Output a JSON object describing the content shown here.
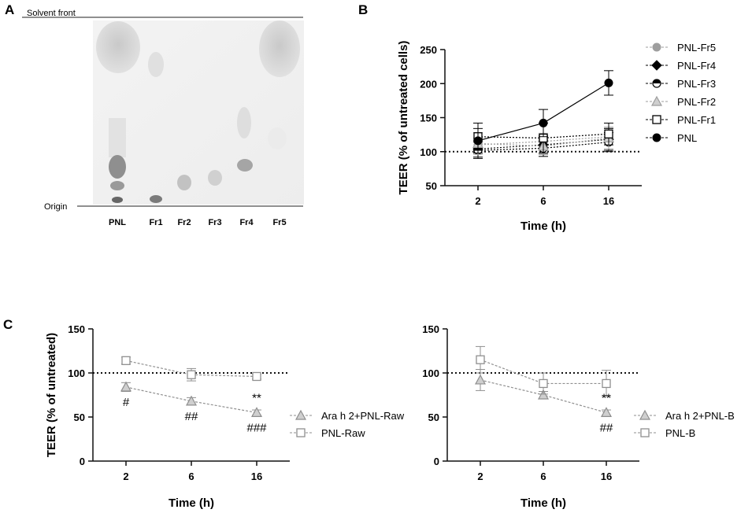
{
  "panels": {
    "a": "A",
    "b": "B",
    "c": "C"
  },
  "tlc": {
    "solvent_front": "Solvent front",
    "origin": "Origin",
    "lanes": [
      "PNL",
      "Fr1",
      "Fr2",
      "Fr3",
      "Fr4",
      "Fr5"
    ]
  },
  "chart_data": [
    {
      "id": "B",
      "type": "line",
      "title": "",
      "xlabel": "Time (h)",
      "ylabel": "TEER (% of untreated cells)",
      "categories": [
        "2",
        "6",
        "16"
      ],
      "ylim": [
        50,
        250
      ],
      "yticks": [
        "50",
        "100",
        "150",
        "200",
        "250"
      ],
      "reference_line": 100,
      "series": [
        {
          "name": "PNL-Fr5",
          "marker": "circle",
          "color": "#9e9e9e",
          "values": [
            110,
            115,
            122
          ],
          "err": [
            10,
            12,
            12
          ]
        },
        {
          "name": "PNL-Fr4",
          "marker": "diamond",
          "color": "#000000",
          "values": [
            104,
            110,
            118
          ],
          "err": [
            12,
            14,
            16
          ]
        },
        {
          "name": "PNL-Fr3",
          "marker": "half-circle",
          "color": "#000000",
          "values": [
            102,
            105,
            114
          ],
          "err": [
            12,
            12,
            14
          ]
        },
        {
          "name": "PNL-Fr2",
          "marker": "triangle",
          "color": "#9e9e9e",
          "values": [
            112,
            108,
            120
          ],
          "err": [
            16,
            12,
            16
          ]
        },
        {
          "name": "PNL-Fr1",
          "marker": "square",
          "color": "#000000",
          "values": [
            122,
            120,
            126
          ],
          "err": [
            20,
            22,
            16
          ]
        },
        {
          "name": "PNL",
          "marker": "circle",
          "color": "#000000",
          "values": [
            116,
            142,
            201
          ],
          "err": [
            18,
            20,
            18
          ]
        }
      ]
    },
    {
      "id": "C-left",
      "type": "line",
      "xlabel": "Time (h)",
      "ylabel": "TEER (% of untreated)",
      "categories": [
        "2",
        "6",
        "16"
      ],
      "ylim": [
        0,
        150
      ],
      "yticks": [
        "0",
        "50",
        "100",
        "150"
      ],
      "reference_line": 100,
      "series": [
        {
          "name": "Ara h 2+PNL-Raw",
          "marker": "triangle",
          "color": "#8f8f8f",
          "values": [
            84,
            68,
            55
          ],
          "err": [
            5,
            4,
            3
          ]
        },
        {
          "name": "PNL-Raw",
          "marker": "square",
          "color": "#8f8f8f",
          "values": [
            114,
            98,
            96
          ],
          "err": [
            4,
            7,
            3
          ]
        }
      ],
      "annotations": [
        {
          "category": "2",
          "value": 84,
          "text": "#",
          "pos": "below"
        },
        {
          "category": "6",
          "value": 68,
          "text": "##",
          "pos": "below"
        },
        {
          "category": "16",
          "value": 55,
          "text": "**",
          "pos": "above"
        },
        {
          "category": "16",
          "value": 55,
          "text": "###",
          "pos": "below"
        }
      ]
    },
    {
      "id": "C-right",
      "type": "line",
      "xlabel": "Time (h)",
      "ylabel": "",
      "categories": [
        "2",
        "6",
        "16"
      ],
      "ylim": [
        0,
        150
      ],
      "yticks": [
        "0",
        "50",
        "100",
        "150"
      ],
      "reference_line": 100,
      "series": [
        {
          "name": "Ara h 2+PNL-B",
          "marker": "triangle",
          "color": "#8f8f8f",
          "values": [
            92,
            75,
            55
          ],
          "err": [
            12,
            4,
            3
          ]
        },
        {
          "name": "PNL-B",
          "marker": "square",
          "color": "#8f8f8f",
          "values": [
            115,
            88,
            88
          ],
          "err": [
            15,
            12,
            15
          ]
        }
      ],
      "annotations": [
        {
          "category": "16",
          "value": 55,
          "text": "**",
          "pos": "above"
        },
        {
          "category": "16",
          "value": 55,
          "text": "##",
          "pos": "below"
        }
      ]
    }
  ]
}
